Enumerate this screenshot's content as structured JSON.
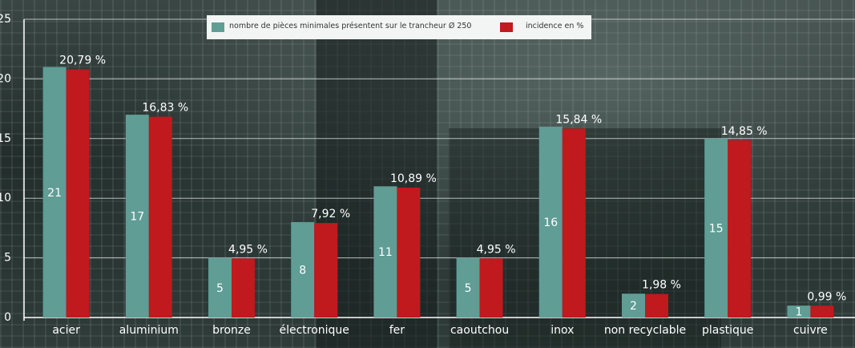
{
  "chart_data": {
    "type": "bar",
    "categories": [
      "acier",
      "aluminium",
      "bronze",
      "électronique",
      "fer",
      "caoutchou",
      "inox",
      "non recyclable",
      "plastique",
      "cuivre"
    ],
    "series": [
      {
        "name": "nombre de pièces minimales présentent sur le trancheur  Ø 250",
        "values": [
          21,
          17,
          5,
          8,
          11,
          5,
          16,
          2,
          15,
          1
        ],
        "labels": [
          "21",
          "17",
          "5",
          "8",
          "11",
          "5",
          "16",
          "2",
          "15",
          "1"
        ],
        "color": "#5f9d95"
      },
      {
        "name": "incidence en  %",
        "values": [
          20.79,
          16.83,
          4.95,
          7.92,
          10.89,
          4.95,
          15.84,
          1.98,
          14.85,
          0.99
        ],
        "labels": [
          "20,79 %",
          "16,83 %",
          "4,95 %",
          "7,92 %",
          "10,89 %",
          "4,95 %",
          "15,84 %",
          "1,98 %",
          "14,85 %",
          "0,99 %"
        ],
        "color": "#c0191e"
      }
    ],
    "ylim": [
      0,
      25
    ],
    "yticks": [
      "0",
      "5",
      "10",
      "15",
      "20",
      "25"
    ],
    "grid": true,
    "legend_position": "top-center"
  }
}
